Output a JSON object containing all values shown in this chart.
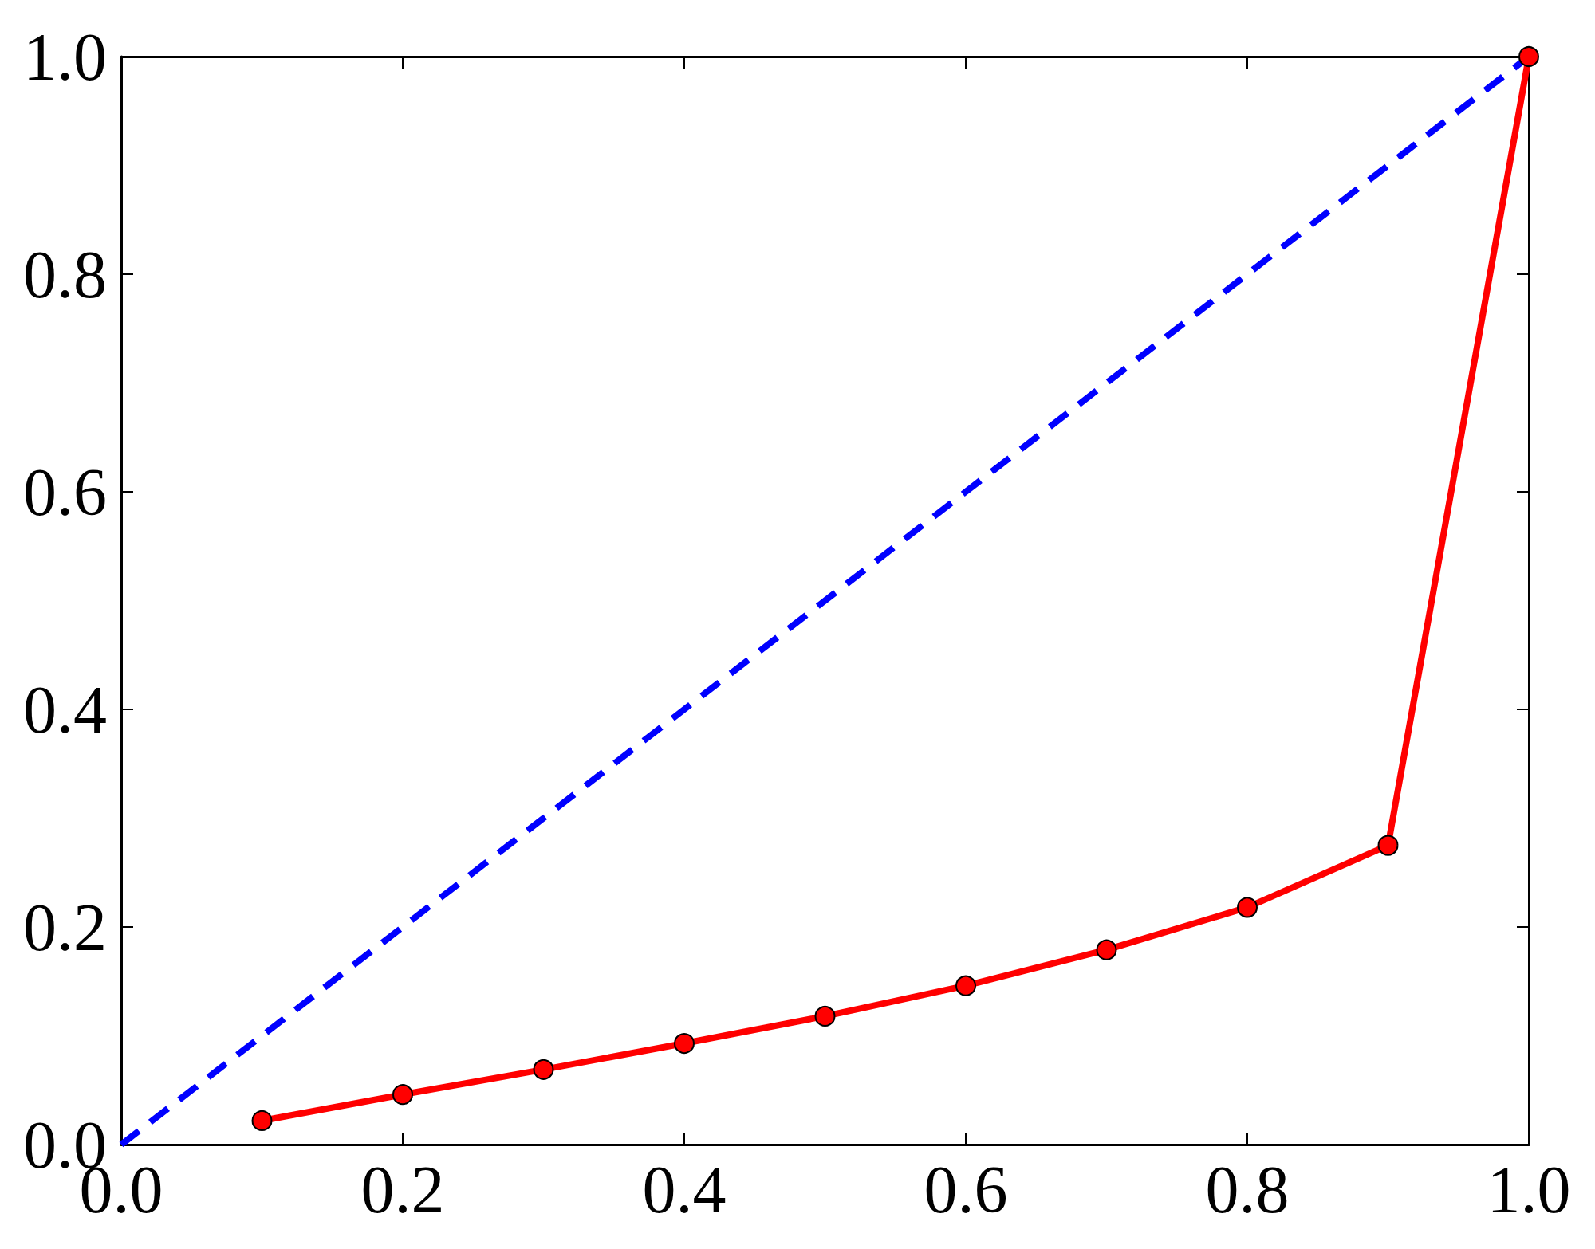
{
  "chart_data": {
    "type": "line",
    "series": [
      {
        "color": "#0000ff",
        "x": [
          0,
          1
        ],
        "values": [
          0,
          1
        ],
        "line_style": "dashed",
        "marker": "none"
      },
      {
        "color": "#ff0000",
        "x": [
          0.1,
          0.2,
          0.3,
          0.4,
          0.5,
          0.6,
          0.7,
          0.8,
          0.9,
          1.0
        ],
        "values": [
          0.022,
          0.046,
          0.069,
          0.093,
          0.118,
          0.146,
          0.179,
          0.218,
          0.275,
          1.0
        ],
        "line_style": "solid",
        "marker": "circle"
      }
    ],
    "xlim": [
      0,
      1
    ],
    "ylim": [
      0,
      1
    ],
    "xticks": [
      {
        "value": 0,
        "label": "0.0"
      },
      0.2,
      0.4,
      0.6,
      0.8,
      {
        "value": 1,
        "label": "1.0"
      }
    ],
    "yticks": [
      {
        "value": 0,
        "label": "0.0"
      },
      0.2,
      0.4,
      0.6,
      0.8,
      {
        "value": 1,
        "label": "1.0"
      }
    ],
    "grid": false
  }
}
